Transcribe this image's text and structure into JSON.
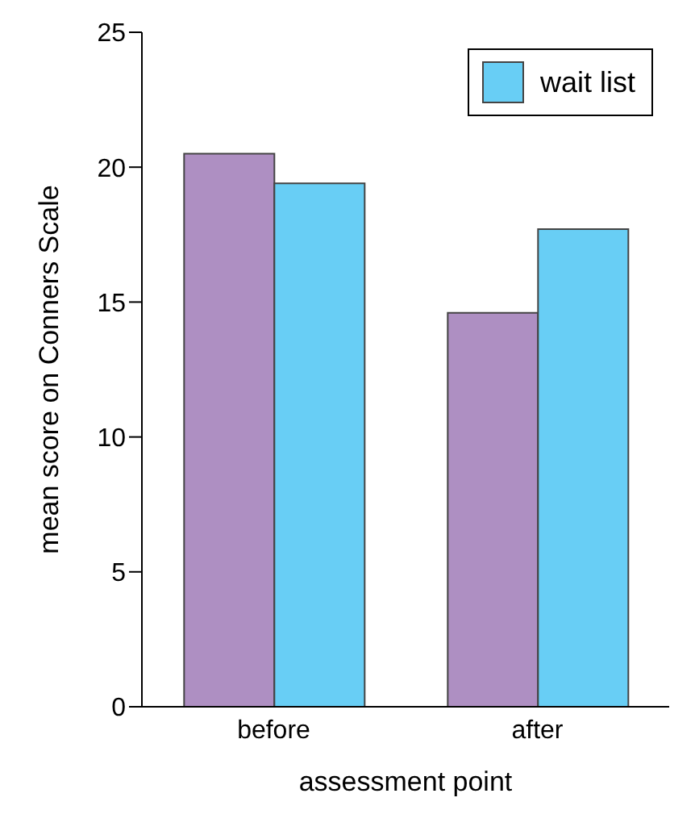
{
  "chart_data": {
    "type": "bar",
    "xlabel": "assessment point",
    "ylabel": "mean score on Conners Scale",
    "categories": [
      "before",
      "after"
    ],
    "series": [
      {
        "color": "#ae8fc2",
        "values": [
          20.5,
          14.6
        ]
      },
      {
        "name": "wait list",
        "color": "#68cef5",
        "values": [
          19.4,
          17.7
        ]
      }
    ],
    "ylim": [
      0,
      25
    ],
    "yticks": [
      0,
      5,
      10,
      15,
      20,
      25
    ],
    "grid": false,
    "legend": "top right"
  }
}
